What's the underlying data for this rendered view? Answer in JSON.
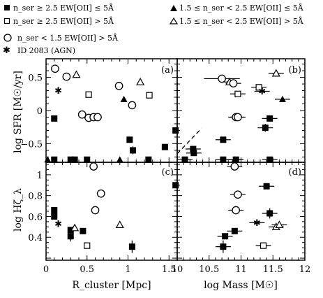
{
  "legend": [
    {
      "symbol": "filled-square",
      "text": "n_ser ≥ 2.5 EW[OII] ≤ 5Å"
    },
    {
      "symbol": "open-square",
      "text": "n_ser ≥ 2.5 EW[OII] > 5Å"
    },
    {
      "symbol": "filled-triangle",
      "text": "1.5 ≤ n_ser < 2.5 EW[OII] ≤ 5Å"
    },
    {
      "symbol": "open-triangle",
      "text": "1.5 ≤ n_ser < 2.5 EW[OII] > 5Å"
    },
    {
      "symbol": "open-circle",
      "text": "n_ser < 1.5 EW[OII] > 5Å"
    },
    {
      "symbol": "star",
      "text": "ID 2083 (AGN)"
    }
  ],
  "axes": {
    "x_left_label": "R_cluster [Mpc]",
    "x_right_label": "log Mass [M☉]",
    "y_top_label": "log SFR [M☉/yr]",
    "y_bottom_label": "log Hζ_λ"
  },
  "panels": {
    "a": "(a)",
    "b": "(b)",
    "c": "(c)",
    "d": "(d)"
  },
  "ticks": {
    "x_left": [
      "0",
      "0.5",
      "1",
      "1.5"
    ],
    "x_right": [
      "10",
      "10.5",
      "11",
      "11.5",
      "12"
    ],
    "y_top": [
      "0.5",
      "0",
      "−0.5"
    ],
    "y_bottom": [
      "1",
      "0.8",
      "0.6",
      "0.4"
    ]
  },
  "chart_data": {
    "type": "scatter",
    "xlim_left": [
      0,
      1.6
    ],
    "xlim_right": [
      10,
      12
    ],
    "ylim_top": [
      -0.78,
      0.78
    ],
    "ylim_bottom": [
      0.18,
      1.12
    ],
    "series": [
      {
        "symbol": "filled-square",
        "a": [
          [
            0.1,
            -0.12
          ],
          [
            0.1,
            -0.74
          ],
          [
            0.3,
            -0.74
          ],
          [
            0.35,
            -0.74
          ],
          [
            0.5,
            -0.74
          ],
          [
            1.02,
            -0.44
          ],
          [
            1.06,
            -0.6
          ],
          [
            1.25,
            -0.74
          ],
          [
            1.45,
            -0.55
          ],
          [
            1.58,
            -0.3
          ]
        ],
        "b": [
          [
            10.12,
            -0.74
          ],
          [
            10.25,
            -0.58
          ],
          [
            10.26,
            -0.64
          ],
          [
            10.72,
            -0.44
          ],
          [
            10.72,
            -0.74
          ],
          [
            10.92,
            -0.74
          ],
          [
            11.38,
            -0.26
          ],
          [
            11.45,
            -0.12
          ],
          [
            11.45,
            -0.74
          ]
        ],
        "c": [
          [
            0.1,
            0.66
          ],
          [
            0.1,
            0.6
          ],
          [
            0.3,
            0.41
          ],
          [
            0.3,
            0.47
          ],
          [
            0.45,
            0.46
          ],
          [
            1.05,
            0.31
          ],
          [
            1.58,
            0.9
          ]
        ],
        "d": [
          [
            10.72,
            0.31
          ],
          [
            10.75,
            0.41
          ],
          [
            10.9,
            0.46
          ],
          [
            11.4,
            0.89
          ],
          [
            11.45,
            0.63
          ]
        ]
      },
      {
        "symbol": "open-square",
        "a": [
          [
            0.52,
            0.24
          ],
          [
            1.26,
            0.23
          ]
        ],
        "b": [
          [
            10.95,
            0.25
          ],
          [
            11.28,
            0.35
          ]
        ],
        "c": [
          [
            0.5,
            0.32
          ]
        ],
        "d": [
          [
            11.35,
            0.32
          ]
        ]
      },
      {
        "symbol": "filled-triangle",
        "a": [
          [
            0.02,
            -0.74
          ],
          [
            0.9,
            -0.74
          ],
          [
            0.95,
            0.17
          ]
        ],
        "b": [
          [
            10.9,
            -0.74
          ],
          [
            11.65,
            0.17
          ]
        ],
        "c": [],
        "d": []
      },
      {
        "symbol": "open-triangle",
        "a": [
          [
            0.37,
            0.54
          ],
          [
            1.15,
            0.43
          ]
        ],
        "b": [
          [
            10.82,
            0.43
          ],
          [
            11.55,
            0.56
          ]
        ],
        "c": [
          [
            0.35,
            0.49
          ],
          [
            0.9,
            0.52
          ]
        ],
        "d": [
          [
            11.55,
            0.5
          ],
          [
            11.6,
            0.52
          ]
        ]
      },
      {
        "symbol": "open-circle",
        "a": [
          [
            0.11,
            0.63
          ],
          [
            0.25,
            0.51
          ],
          [
            0.44,
            -0.06
          ],
          [
            0.52,
            -0.11
          ],
          [
            0.58,
            -0.1
          ],
          [
            0.63,
            -0.1
          ],
          [
            0.89,
            0.37
          ],
          [
            1.05,
            0.08
          ]
        ],
        "b": [
          [
            10.7,
            0.48
          ],
          [
            10.88,
            0.41
          ],
          [
            10.92,
            -0.1
          ],
          [
            10.95,
            -0.1
          ]
        ],
        "c": [
          [
            0.58,
            1.08
          ],
          [
            0.6,
            0.66
          ],
          [
            0.67,
            0.82
          ]
        ],
        "d": [
          [
            10.9,
            1.08
          ],
          [
            10.95,
            0.81
          ],
          [
            10.92,
            0.66
          ]
        ]
      },
      {
        "symbol": "star",
        "a": [
          [
            0.15,
            0.3
          ]
        ],
        "b": [
          [
            11.33,
            0.29
          ]
        ],
        "c": [
          [
            0.15,
            0.53
          ]
        ],
        "d": [
          [
            11.25,
            0.54
          ]
        ]
      }
    ],
    "reference_line_b": [
      [
        10.0,
        -0.65
      ],
      [
        10.38,
        -0.27
      ]
    ]
  }
}
